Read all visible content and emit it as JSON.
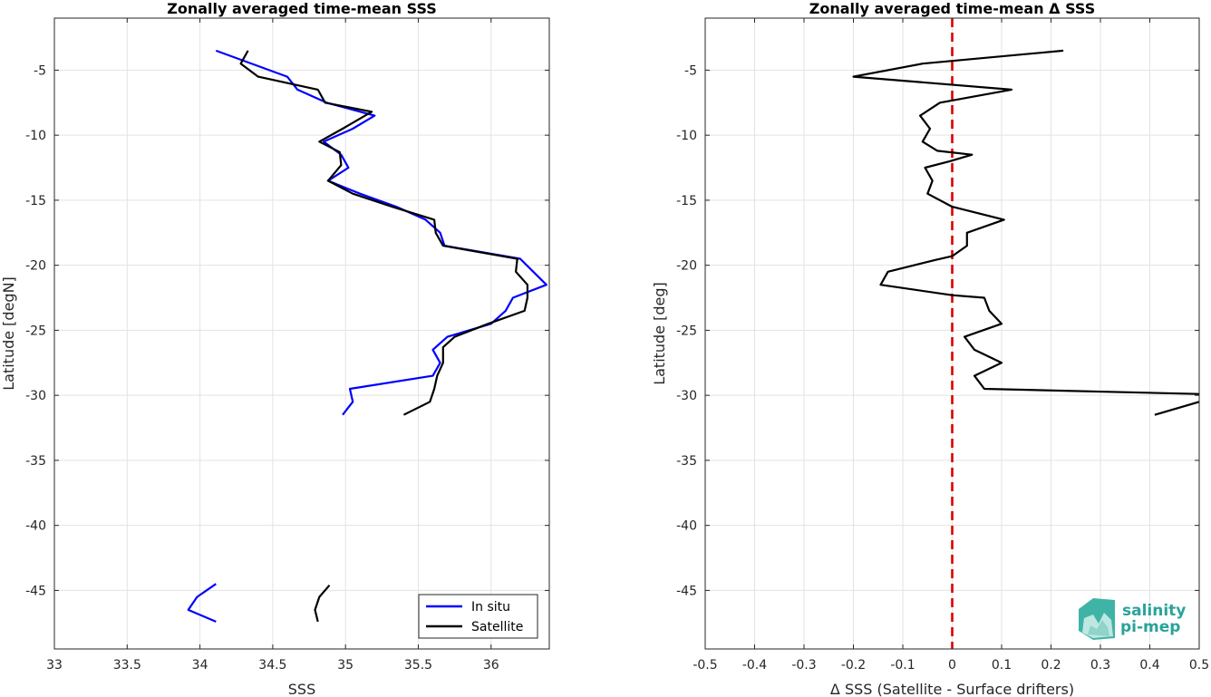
{
  "chart_data": [
    {
      "type": "line",
      "title": "Zonally averaged time-mean SSS",
      "xlabel": "SSS",
      "ylabel": "Latitude [degN]",
      "xlim": [
        33,
        36.4
      ],
      "ylim": [
        -49.5,
        -1
      ],
      "xticks": [
        33,
        33.5,
        34,
        34.5,
        35,
        35.5,
        36
      ],
      "xtick_labels": [
        "33",
        "33.5",
        "34",
        "34.5",
        "35",
        "35.5",
        "36"
      ],
      "yticks": [
        -5,
        -10,
        -15,
        -20,
        -25,
        -30,
        -35,
        -40,
        -45
      ],
      "ytick_labels": [
        "-5",
        "-10",
        "-15",
        "-20",
        "-25",
        "-30",
        "-35",
        "-40",
        "-45"
      ],
      "grid": true,
      "legend_position": "bottom-right",
      "series": [
        {
          "name": "In situ",
          "color": "#0000ff",
          "segments": [
            [
              [
                34.11,
                -3.5
              ],
              [
                34.6,
                -5.5
              ],
              [
                34.67,
                -6.5
              ],
              [
                34.87,
                -7.5
              ],
              [
                35.2,
                -8.5
              ],
              [
                35.05,
                -9.5
              ],
              [
                34.85,
                -10.5
              ],
              [
                34.97,
                -11.5
              ],
              [
                35.02,
                -12.5
              ],
              [
                34.88,
                -13.5
              ],
              [
                35.1,
                -14.5
              ],
              [
                35.35,
                -15.5
              ],
              [
                35.55,
                -16.5
              ],
              [
                35.65,
                -17.5
              ],
              [
                35.68,
                -18.5
              ],
              [
                36.2,
                -19.5
              ],
              [
                36.38,
                -21.5
              ],
              [
                36.15,
                -22.5
              ],
              [
                36.1,
                -23.5
              ],
              [
                36.0,
                -24.5
              ],
              [
                35.7,
                -25.5
              ],
              [
                35.6,
                -26.5
              ],
              [
                35.65,
                -27.5
              ],
              [
                35.6,
                -28.5
              ],
              [
                35.03,
                -29.5
              ],
              [
                35.05,
                -30.5
              ],
              [
                34.98,
                -31.5
              ]
            ],
            [
              [
                34.11,
                -44.5
              ],
              [
                33.98,
                -45.5
              ],
              [
                33.92,
                -46.5
              ],
              [
                34.11,
                -47.4
              ]
            ]
          ]
        },
        {
          "name": "Satellite",
          "color": "#000000",
          "segments": [
            [
              [
                34.33,
                -3.5
              ],
              [
                34.28,
                -4.5
              ],
              [
                34.4,
                -5.5
              ],
              [
                34.81,
                -6.5
              ],
              [
                34.86,
                -7.5
              ],
              [
                35.18,
                -8.2
              ],
              [
                34.98,
                -9.5
              ],
              [
                34.82,
                -10.5
              ],
              [
                34.96,
                -11.3
              ],
              [
                34.97,
                -12.3
              ],
              [
                34.88,
                -13.5
              ],
              [
                35.05,
                -14.5
              ],
              [
                35.32,
                -15.5
              ],
              [
                35.61,
                -16.5
              ],
              [
                35.62,
                -17.5
              ],
              [
                35.67,
                -18.5
              ],
              [
                36.18,
                -19.5
              ],
              [
                36.17,
                -20.5
              ],
              [
                36.25,
                -21.5
              ],
              [
                36.25,
                -22.5
              ],
              [
                36.23,
                -23.5
              ],
              [
                35.98,
                -24.5
              ],
              [
                35.75,
                -25.5
              ],
              [
                35.67,
                -26.3
              ],
              [
                35.67,
                -27.5
              ],
              [
                35.63,
                -28.5
              ],
              [
                35.61,
                -29.5
              ],
              [
                35.58,
                -30.5
              ],
              [
                35.4,
                -31.5
              ]
            ],
            [
              [
                34.89,
                -44.6
              ],
              [
                34.82,
                -45.5
              ],
              [
                34.79,
                -46.5
              ],
              [
                34.81,
                -47.4
              ]
            ]
          ]
        }
      ]
    },
    {
      "type": "line",
      "title": "Zonally averaged time-mean Δ SSS",
      "xlabel": "Δ SSS (Satellite - Surface drifters)",
      "ylabel": "Latitude [deg]",
      "xlim": [
        -0.5,
        0.5
      ],
      "ylim": [
        -49.5,
        -1
      ],
      "xticks": [
        -0.5,
        -0.4,
        -0.3,
        -0.2,
        -0.1,
        0,
        0.1,
        0.2,
        0.3,
        0.4,
        0.5
      ],
      "xtick_labels": [
        "-0.5",
        "-0.4",
        "-0.3",
        "-0.2",
        "-0.1",
        "0",
        "0.1",
        "0.2",
        "0.3",
        "0.4",
        "0.5"
      ],
      "yticks": [
        -5,
        -10,
        -15,
        -20,
        -25,
        -30,
        -35,
        -40,
        -45
      ],
      "ytick_labels": [
        "-5",
        "-10",
        "-15",
        "-20",
        "-25",
        "-30",
        "-35",
        "-40",
        "-45"
      ],
      "grid": true,
      "zero_line": {
        "x": 0,
        "color": "#dd0000",
        "style": "dashed"
      },
      "series": [
        {
          "color": "#000000",
          "segments": [
            [
              [
                0.225,
                -3.5
              ],
              [
                -0.06,
                -4.5
              ],
              [
                -0.2,
                -5.5
              ],
              [
                0.12,
                -6.5
              ],
              [
                -0.025,
                -7.5
              ],
              [
                -0.065,
                -8.5
              ],
              [
                -0.045,
                -9.5
              ],
              [
                -0.06,
                -10.5
              ],
              [
                -0.03,
                -11.2
              ],
              [
                0.04,
                -11.5
              ],
              [
                -0.005,
                -12.0
              ],
              [
                -0.055,
                -12.5
              ],
              [
                -0.04,
                -13.5
              ],
              [
                -0.05,
                -14.5
              ],
              [
                0.0,
                -15.5
              ],
              [
                0.105,
                -16.5
              ],
              [
                0.03,
                -17.5
              ],
              [
                0.03,
                -18.5
              ],
              [
                0.0,
                -19.3
              ],
              [
                -0.035,
                -19.6
              ],
              [
                -0.13,
                -20.5
              ],
              [
                -0.145,
                -21.5
              ],
              [
                0.0,
                -22.3
              ],
              [
                0.065,
                -22.5
              ],
              [
                0.075,
                -23.5
              ],
              [
                0.1,
                -24.5
              ],
              [
                0.025,
                -25.5
              ],
              [
                0.045,
                -26.5
              ],
              [
                0.1,
                -27.5
              ],
              [
                0.045,
                -28.5
              ],
              [
                0.065,
                -29.5
              ],
              [
                0.5,
                -29.9
              ]
            ],
            [
              [
                0.5,
                -30.5
              ],
              [
                0.41,
                -31.5
              ]
            ]
          ]
        }
      ]
    }
  ],
  "logo": {
    "line1": "salinity",
    "line2": "pi-mep"
  }
}
